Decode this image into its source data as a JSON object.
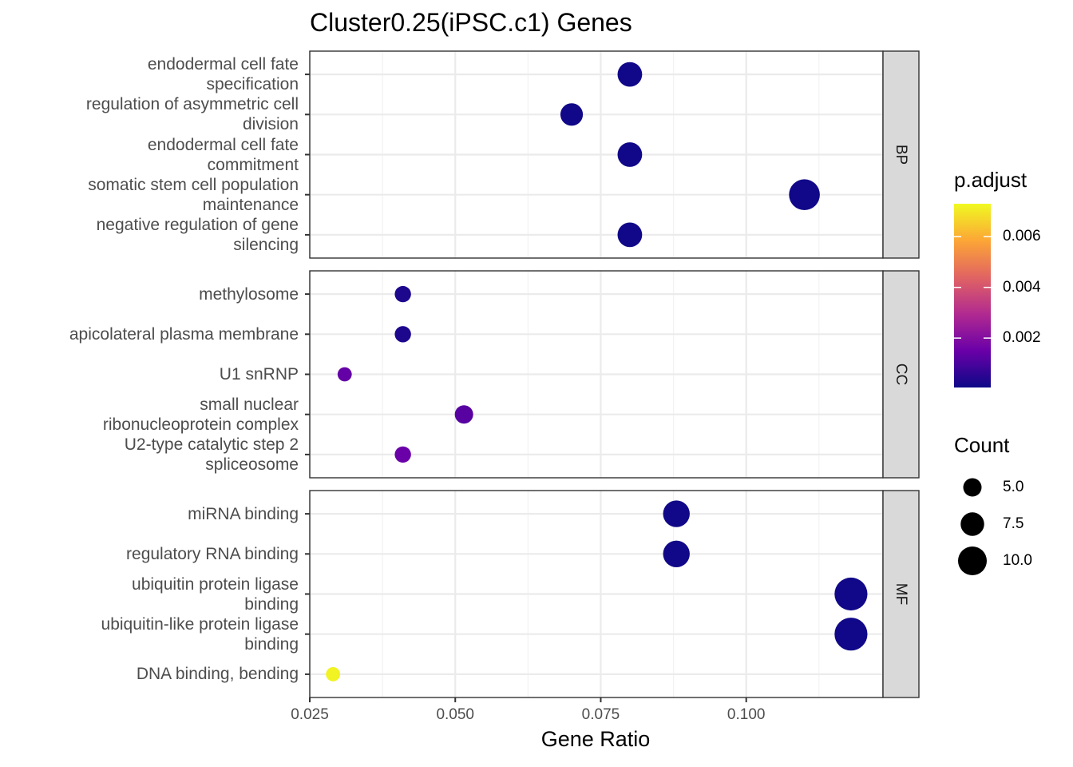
{
  "chart_data": {
    "type": "scatter",
    "title": "Cluster0.25(iPSC.c1) Genes",
    "xlabel": "Gene Ratio",
    "ylabel": "",
    "xlim": [
      0.025,
      0.1235
    ],
    "x_ticks": [
      {
        "value": 0.025,
        "label": "0.025"
      },
      {
        "value": 0.05,
        "label": "0.050"
      },
      {
        "value": 0.075,
        "label": "0.075"
      },
      {
        "value": 0.1,
        "label": "0.100"
      }
    ],
    "facets": [
      {
        "name": "BP",
        "points": [
          {
            "label": [
              "endodermal cell fate",
              "specification"
            ],
            "x": 0.08,
            "count": 8,
            "p_adjust": 0.0001
          },
          {
            "label": [
              "regulation of asymmetric cell",
              "division"
            ],
            "x": 0.07,
            "count": 7,
            "p_adjust": 0.0001
          },
          {
            "label": [
              "endodermal cell fate",
              "commitment"
            ],
            "x": 0.08,
            "count": 8,
            "p_adjust": 0.0001
          },
          {
            "label": [
              "somatic stem cell population",
              "maintenance"
            ],
            "x": 0.11,
            "count": 11,
            "p_adjust": 0.0001
          },
          {
            "label": [
              "negative regulation of gene",
              "silencing"
            ],
            "x": 0.08,
            "count": 8,
            "p_adjust": 0.0001
          }
        ]
      },
      {
        "name": "CC",
        "points": [
          {
            "label": [
              "methylosome"
            ],
            "x": 0.041,
            "count": 4,
            "p_adjust": 0.0003
          },
          {
            "label": [
              "apicolateral plasma membrane"
            ],
            "x": 0.041,
            "count": 4,
            "p_adjust": 0.0003
          },
          {
            "label": [
              "U1 snRNP"
            ],
            "x": 0.031,
            "count": 3,
            "p_adjust": 0.0014
          },
          {
            "label": [
              "small nuclear",
              "ribonucleoprotein complex"
            ],
            "x": 0.0515,
            "count": 5,
            "p_adjust": 0.0012
          },
          {
            "label": [
              "U2-type catalytic step 2",
              "spliceosome"
            ],
            "x": 0.041,
            "count": 4,
            "p_adjust": 0.0015
          }
        ]
      },
      {
        "name": "MF",
        "points": [
          {
            "label": [
              "miRNA binding"
            ],
            "x": 0.088,
            "count": 9,
            "p_adjust": 0.0001
          },
          {
            "label": [
              "regulatory RNA binding"
            ],
            "x": 0.088,
            "count": 9,
            "p_adjust": 0.0001
          },
          {
            "label": [
              "ubiquitin protein ligase",
              "binding"
            ],
            "x": 0.118,
            "count": 12,
            "p_adjust": 0.0001
          },
          {
            "label": [
              "ubiquitin-like protein ligase",
              "binding"
            ],
            "x": 0.118,
            "count": 12,
            "p_adjust": 0.0001
          },
          {
            "label": [
              "DNA binding, bending"
            ],
            "x": 0.029,
            "count": 3,
            "p_adjust": 0.0072
          }
        ]
      }
    ],
    "color_legend": {
      "title": "p.adjust",
      "range": [
        5e-05,
        0.0073
      ],
      "ticks": [
        {
          "value": 0.002,
          "label": "0.002"
        },
        {
          "value": 0.004,
          "label": "0.004"
        },
        {
          "value": 0.006,
          "label": "0.006"
        }
      ],
      "colors": [
        "#0d0887",
        "#6a00a8",
        "#b12a90",
        "#e16462",
        "#fca636",
        "#f0f921"
      ]
    },
    "size_legend": {
      "title": "Count",
      "entries": [
        {
          "value": 5.0,
          "label": "5.0"
        },
        {
          "value": 7.5,
          "label": "7.5"
        },
        {
          "value": 10.0,
          "label": "10.0"
        }
      ]
    },
    "grid": true,
    "legend_position": "right"
  }
}
